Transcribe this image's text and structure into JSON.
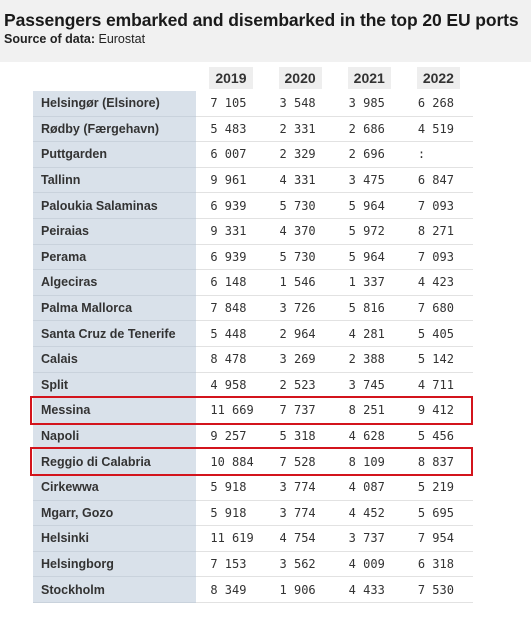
{
  "header": {
    "title": "Passengers embarked and disembarked in the top 20 EU ports",
    "source_label": "Source of data:",
    "source_value": "Eurostat"
  },
  "table": {
    "columns": [
      "2019",
      "2020",
      "2021",
      "2022"
    ],
    "rows": [
      {
        "name": "Helsingør (Elsinore)",
        "values": [
          "7 105",
          "3 548",
          "3 985",
          "6 268"
        ]
      },
      {
        "name": "Rødby (Færgehavn)",
        "values": [
          "5 483",
          "2 331",
          "2 686",
          "4 519"
        ]
      },
      {
        "name": "Puttgarden",
        "values": [
          "6 007",
          "2 329",
          "2 696",
          ":"
        ]
      },
      {
        "name": "Tallinn",
        "values": [
          "9 961",
          "4 331",
          "3 475",
          "6 847"
        ]
      },
      {
        "name": "Paloukia Salaminas",
        "values": [
          "6 939",
          "5 730",
          "5 964",
          "7 093"
        ]
      },
      {
        "name": "Peiraias",
        "values": [
          "9 331",
          "4 370",
          "5 972",
          "8 271"
        ]
      },
      {
        "name": "Perama",
        "values": [
          "6 939",
          "5 730",
          "5 964",
          "7 093"
        ]
      },
      {
        "name": "Algeciras",
        "values": [
          "6 148",
          "1 546",
          "1 337",
          "4 423"
        ]
      },
      {
        "name": "Palma Mallorca",
        "values": [
          "7 848",
          "3 726",
          "5 816",
          "7 680"
        ]
      },
      {
        "name": "Santa Cruz de Tenerife",
        "values": [
          "5 448",
          "2 964",
          "4 281",
          "5 405"
        ]
      },
      {
        "name": "Calais",
        "values": [
          "8 478",
          "3 269",
          "2 388",
          "5 142"
        ]
      },
      {
        "name": "Split",
        "values": [
          "4 958",
          "2 523",
          "3 745",
          "4 711"
        ]
      },
      {
        "name": "Messina",
        "values": [
          "11 669",
          "7 737",
          "8 251",
          "9 412"
        ]
      },
      {
        "name": "Napoli",
        "values": [
          "9 257",
          "5 318",
          "4 628",
          "5 456"
        ]
      },
      {
        "name": "Reggio di Calabria",
        "values": [
          "10 884",
          "7 528",
          "8 109",
          "8 837"
        ]
      },
      {
        "name": "Cirkewwa",
        "values": [
          "5 918",
          "3 774",
          "4 087",
          "5 219"
        ]
      },
      {
        "name": "Mgarr, Gozo",
        "values": [
          "5 918",
          "3 774",
          "4 452",
          "5 695"
        ]
      },
      {
        "name": "Helsinki",
        "values": [
          "11 619",
          "4 754",
          "3 737",
          "7 954"
        ]
      },
      {
        "name": "Helsingborg",
        "values": [
          "7 153",
          "3 562",
          "4 009",
          "6 318"
        ]
      },
      {
        "name": "Stockholm",
        "values": [
          "8 349",
          "1 906",
          "4 433",
          "7 530"
        ]
      }
    ],
    "highlighted_rows": [
      "Messina",
      "Reggio di Calabria"
    ],
    "highlight_color": "#d3141c"
  }
}
